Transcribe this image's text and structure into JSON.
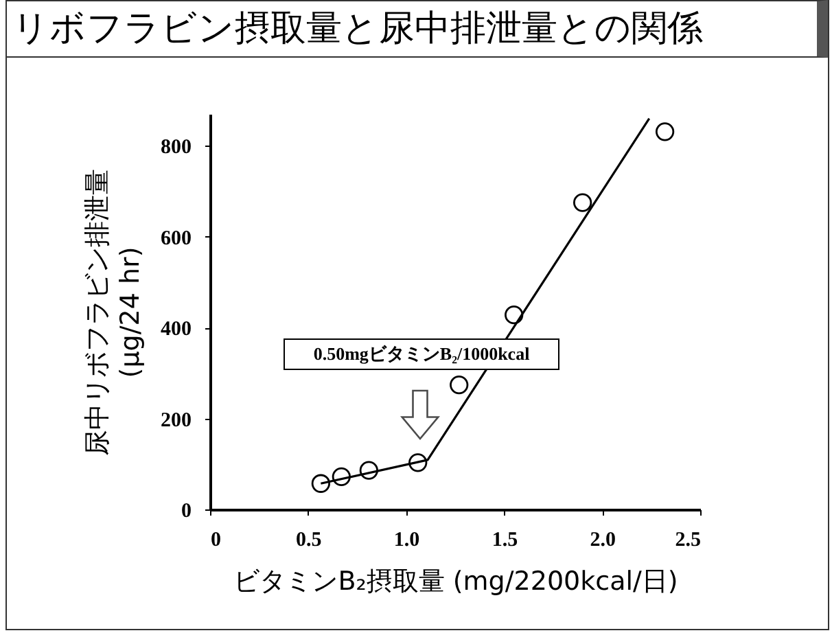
{
  "chart_data": {
    "type": "scatter",
    "title": "リボフラビン摂取量と尿中排泄量との関係",
    "xlabel": "ビタミンB₂摂取量 (mg/2200kcal/日)",
    "ylabel": "尿中リボフラビン排泄量\n(µg/24 hr)",
    "xlim": [
      0,
      2.5
    ],
    "ylim": [
      0,
      870
    ],
    "xticks": [
      0,
      0.5,
      {
        "value": 1,
        "label": "1.0"
      },
      1.5,
      {
        "value": 2,
        "label": "2.0"
      },
      2.5
    ],
    "yticks": [
      0,
      200,
      400,
      600,
      800
    ],
    "grid": false,
    "annotations": [
      "0.50mgビタミンB₂/1000kcal"
    ],
    "series": [
      {
        "type": "scatter",
        "marker": "circle",
        "color": "#000000",
        "x": [
          0.565,
          0.67,
          0.81,
          1.06,
          1.27,
          1.55,
          1.9,
          2.32
        ],
        "values": [
          57,
          72,
          86,
          103,
          274,
          428,
          675,
          831
        ]
      },
      {
        "type": "line",
        "color": "#000000",
        "x": [
          0.565,
          1.11,
          2.24
        ],
        "values": [
          57,
          109,
          860
        ]
      }
    ]
  }
}
